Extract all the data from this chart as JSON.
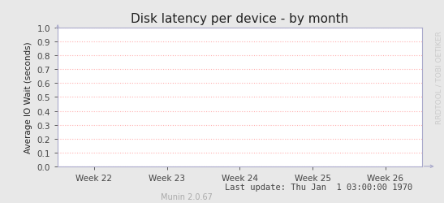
{
  "title": "Disk latency per device - by month",
  "ylabel": "Average IO Wait (seconds)",
  "xtick_labels": [
    "Week 22",
    "Week 23",
    "Week 24",
    "Week 25",
    "Week 26"
  ],
  "ylim": [
    0.0,
    1.0
  ],
  "ytick_values": [
    0.0,
    0.1,
    0.2,
    0.3,
    0.4,
    0.5,
    0.6,
    0.7,
    0.8,
    0.9,
    1.0
  ],
  "grid_color": "#ffb0b0",
  "bg_color": "#e8e8e8",
  "plot_bg_color": "#ffffff",
  "axis_color": "#aaaacc",
  "tick_color": "#444444",
  "tick_fontsize": 7.5,
  "title_color": "#222222",
  "title_fontsize": 11,
  "ylabel_color": "#222222",
  "ylabel_fontsize": 7.5,
  "footer_text": "Last update: Thu Jan  1 03:00:00 1970",
  "footer_color": "#444444",
  "footer_fontsize": 7.5,
  "munin_text": "Munin 2.0.67",
  "munin_color": "#aaaaaa",
  "munin_fontsize": 7,
  "watermark_text": "RRDTOOL / TOBI OETIKER",
  "watermark_color": "#cccccc",
  "watermark_fontsize": 6.5
}
